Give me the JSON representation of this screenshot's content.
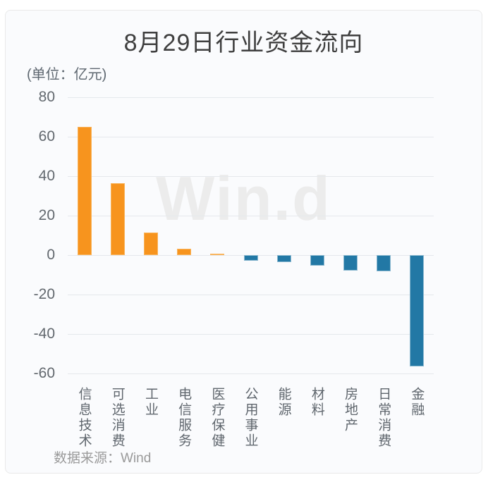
{
  "chart_data": {
    "type": "bar",
    "title": "8月29日行业资金流向",
    "unit_label": "(单位：亿元)",
    "categories": [
      "信息技术",
      "可选消费",
      "工业",
      "电信服务",
      "医疗保健",
      "公用事业",
      "能源",
      "材料",
      "房地产",
      "日常消费",
      "金融"
    ],
    "values": [
      65,
      36.4,
      11.5,
      3.1,
      0.8,
      -2.8,
      -3.6,
      -5.3,
      -7.8,
      -8.3,
      -56.5
    ],
    "yticks": [
      80,
      60,
      40,
      20,
      0,
      -20,
      -40,
      -60
    ],
    "ylim": [
      -60,
      80
    ],
    "xlabel": "",
    "ylabel": "",
    "grid": true,
    "legend": "none",
    "watermark": "Win.d",
    "source": "数据来源：Wind",
    "colors": {
      "positive": "#f7941e",
      "positive_edge": "#f9b45c",
      "negative": "#2278a5",
      "negative_edge": "#8cb9d0",
      "grid": "#e5e8ec",
      "title_text": "#3f3f3f",
      "axis_text": "#62686e",
      "source_text": "#9a9a9a",
      "watermark_text": "#ececec",
      "card_background": "#fafbfd"
    }
  }
}
